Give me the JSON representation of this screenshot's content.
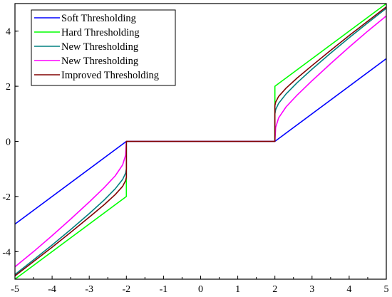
{
  "chart_data": {
    "type": "line",
    "title": "",
    "xlabel": "",
    "ylabel": "",
    "xlim": [
      -5,
      5
    ],
    "ylim": [
      -5,
      5
    ],
    "x_ticks": [
      -5,
      -4,
      -3,
      -2,
      -1,
      0,
      1,
      2,
      3,
      4,
      5
    ],
    "y_ticks": [
      -4,
      -2,
      0,
      2,
      4
    ],
    "threshold": 2,
    "grid": false,
    "legend_position": "top-left",
    "series": [
      {
        "name": "Soft Thresholding",
        "color": "#0000ff",
        "points": [
          [
            -5,
            -3
          ],
          [
            -2,
            0
          ],
          [
            2,
            0
          ],
          [
            5,
            3
          ]
        ]
      },
      {
        "name": "Hard Thresholding",
        "color": "#00ff00",
        "points": [
          [
            -5,
            -5
          ],
          [
            -2,
            -2
          ],
          [
            -2,
            0
          ],
          [
            2,
            0
          ],
          [
            2,
            2
          ],
          [
            5,
            5
          ]
        ]
      },
      {
        "name": "New Thresholding",
        "color": "#008080",
        "points": [
          [
            -5,
            -4.83
          ],
          [
            -4.5,
            -4.3
          ],
          [
            -4,
            -3.76
          ],
          [
            -3.5,
            -3.2
          ],
          [
            -3,
            -2.62
          ],
          [
            -2.6,
            -2.13
          ],
          [
            -2.3,
            -1.72
          ],
          [
            -2.1,
            -1.38
          ],
          [
            -2.02,
            -1.15
          ],
          [
            -2,
            -1.0
          ],
          [
            -2,
            0
          ],
          [
            2,
            0
          ],
          [
            2,
            1.0
          ],
          [
            2.02,
            1.15
          ],
          [
            2.1,
            1.38
          ],
          [
            2.3,
            1.72
          ],
          [
            2.6,
            2.13
          ],
          [
            3,
            2.62
          ],
          [
            3.5,
            3.2
          ],
          [
            4,
            3.76
          ],
          [
            4.5,
            4.3
          ],
          [
            5,
            4.83
          ]
        ]
      },
      {
        "name": "New Thresholding",
        "color": "#ff00ff",
        "points": [
          [
            -5,
            -4.55
          ],
          [
            -4.5,
            -4.0
          ],
          [
            -4,
            -3.42
          ],
          [
            -3.5,
            -2.82
          ],
          [
            -3,
            -2.2
          ],
          [
            -2.6,
            -1.68
          ],
          [
            -2.3,
            -1.25
          ],
          [
            -2.1,
            -0.85
          ],
          [
            -2.02,
            -0.5
          ],
          [
            -2,
            0
          ],
          [
            2,
            0
          ],
          [
            2.02,
            0.5
          ],
          [
            2.1,
            0.85
          ],
          [
            2.3,
            1.25
          ],
          [
            2.6,
            1.68
          ],
          [
            3,
            2.2
          ],
          [
            3.5,
            2.82
          ],
          [
            4,
            3.42
          ],
          [
            4.5,
            4.0
          ],
          [
            5,
            4.55
          ]
        ]
      },
      {
        "name": "Improved Thresholding",
        "color": "#800000",
        "points": [
          [
            -5,
            -4.88
          ],
          [
            -4.5,
            -4.36
          ],
          [
            -4,
            -3.84
          ],
          [
            -3.5,
            -3.3
          ],
          [
            -3,
            -2.75
          ],
          [
            -2.6,
            -2.3
          ],
          [
            -2.3,
            -1.93
          ],
          [
            -2.1,
            -1.63
          ],
          [
            -2.02,
            -1.42
          ],
          [
            -2,
            -1.3
          ],
          [
            -2,
            0
          ],
          [
            2,
            0
          ],
          [
            2,
            1.3
          ],
          [
            2.02,
            1.42
          ],
          [
            2.1,
            1.63
          ],
          [
            2.3,
            1.93
          ],
          [
            2.6,
            2.3
          ],
          [
            3,
            2.75
          ],
          [
            3.5,
            3.3
          ],
          [
            4,
            3.84
          ],
          [
            4.5,
            4.36
          ],
          [
            5,
            4.88
          ]
        ]
      }
    ]
  }
}
